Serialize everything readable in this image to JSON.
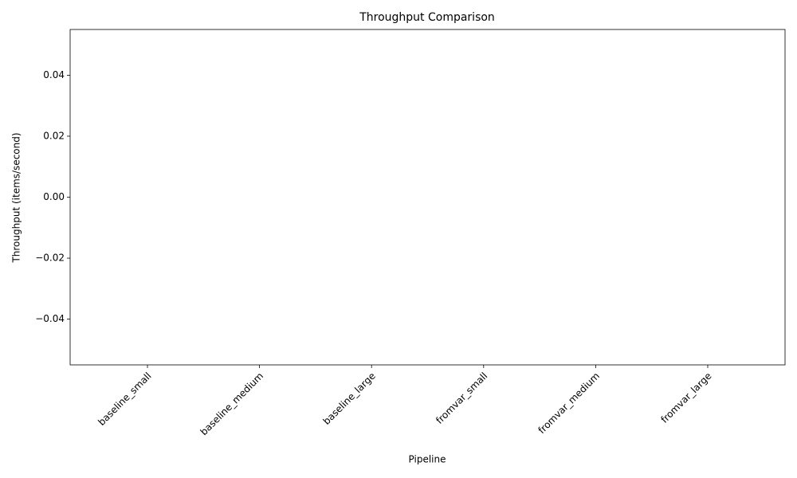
{
  "chart_data": {
    "type": "bar",
    "title": "Throughput Comparison",
    "x_label": "Pipeline",
    "y_label": "Throughput (items/second)",
    "categories": [
      "baseline_small",
      "baseline_medium",
      "baseline_large",
      "fromvar_small",
      "fromvar_medium",
      "fromvar_large"
    ],
    "values": [
      0,
      0,
      0,
      0,
      0,
      0
    ],
    "color": "#1f77b4",
    "ylim": [
      -0.055,
      0.055
    ],
    "yticks": [
      {
        "value": -0.04,
        "label": "−0.04"
      },
      {
        "value": -0.02,
        "label": "−0.02"
      },
      {
        "value": 0,
        "label": "0.00"
      },
      {
        "value": 0.02,
        "label": "0.02"
      },
      {
        "value": 0.04,
        "label": "0.04"
      }
    ],
    "grid": false
  }
}
